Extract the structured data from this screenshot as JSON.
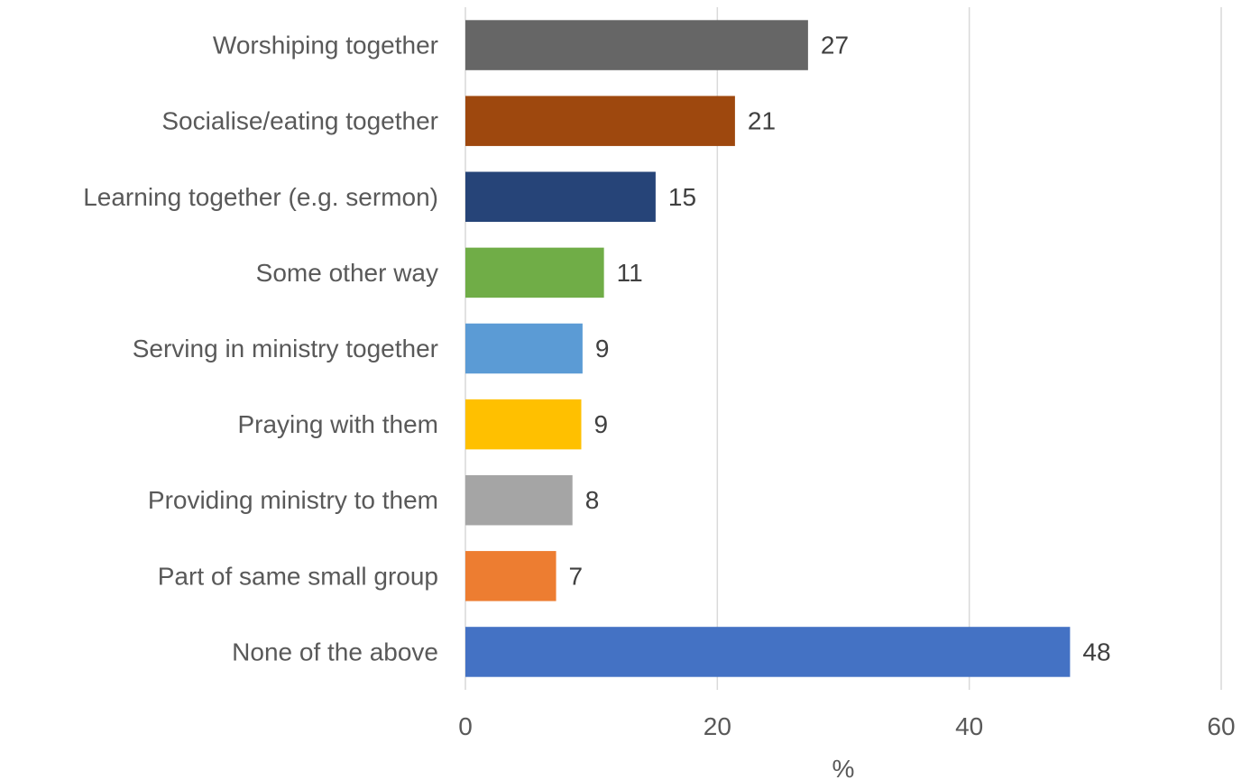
{
  "chart_data": {
    "type": "bar",
    "orientation": "horizontal",
    "categories": [
      "Worshiping together",
      "Socialise/eating together",
      "Learning together (e.g. sermon)",
      "Some other way",
      "Serving in ministry together",
      "Praying with them",
      "Providing ministry to them",
      "Part of same small group",
      "None of the above"
    ],
    "values": [
      27,
      21,
      15,
      11,
      9,
      9,
      8,
      7,
      48
    ],
    "exact_values": [
      27.2,
      21.4,
      15.1,
      11.0,
      9.3,
      9.2,
      8.5,
      7.2,
      48.0
    ],
    "colors": [
      "#666666",
      "#9e480e",
      "#264478",
      "#70ad47",
      "#5b9bd5",
      "#ffc000",
      "#a5a5a5",
      "#ed7d31",
      "#4472c4"
    ],
    "title": "",
    "xlabel": "%",
    "ylabel": "",
    "xlim": [
      0,
      60
    ],
    "xticks": [
      "0",
      "20",
      "40",
      "60"
    ],
    "grid": true,
    "data_labels": true
  }
}
